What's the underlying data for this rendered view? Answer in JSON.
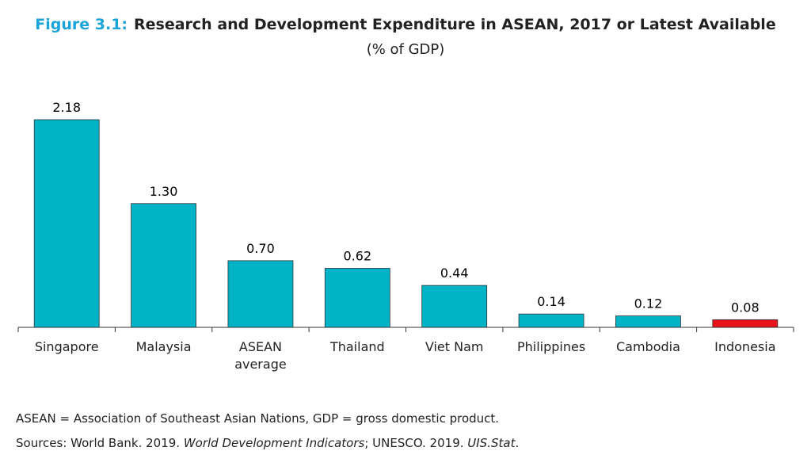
{
  "chart_data": {
    "type": "bar",
    "title_prefix": "Figure 3.1:",
    "title": "Research and Development Expenditure in ASEAN, 2017 or Latest Available",
    "subtitle": "(% of GDP)",
    "categories": [
      "Singapore",
      "Malaysia",
      "ASEAN average",
      "Thailand",
      "Viet Nam",
      "Philippines",
      "Cambodia",
      "Indonesia"
    ],
    "values": [
      2.18,
      1.3,
      0.7,
      0.62,
      0.44,
      0.14,
      0.12,
      0.08
    ],
    "value_labels": [
      "2.18",
      "1.30",
      "0.70",
      "0.62",
      "0.44",
      "0.14",
      "0.12",
      "0.08"
    ],
    "colors": [
      "#00b3c6",
      "#00b3c6",
      "#00b3c6",
      "#00b3c6",
      "#00b3c6",
      "#00b3c6",
      "#00b3c6",
      "#e8141c"
    ],
    "note": "ASEAN = Association of Southeast Asian Nations, GDP = gross domestic product.",
    "sources": [
      {
        "text": "Sources: World Bank. 2019. ",
        "italic": false
      },
      {
        "text": "World Development Indicators",
        "italic": true
      },
      {
        "text": "; UNESCO. 2019. ",
        "italic": false
      },
      {
        "text": "UIS.Stat",
        "italic": true
      },
      {
        "text": ".",
        "italic": false
      }
    ]
  }
}
